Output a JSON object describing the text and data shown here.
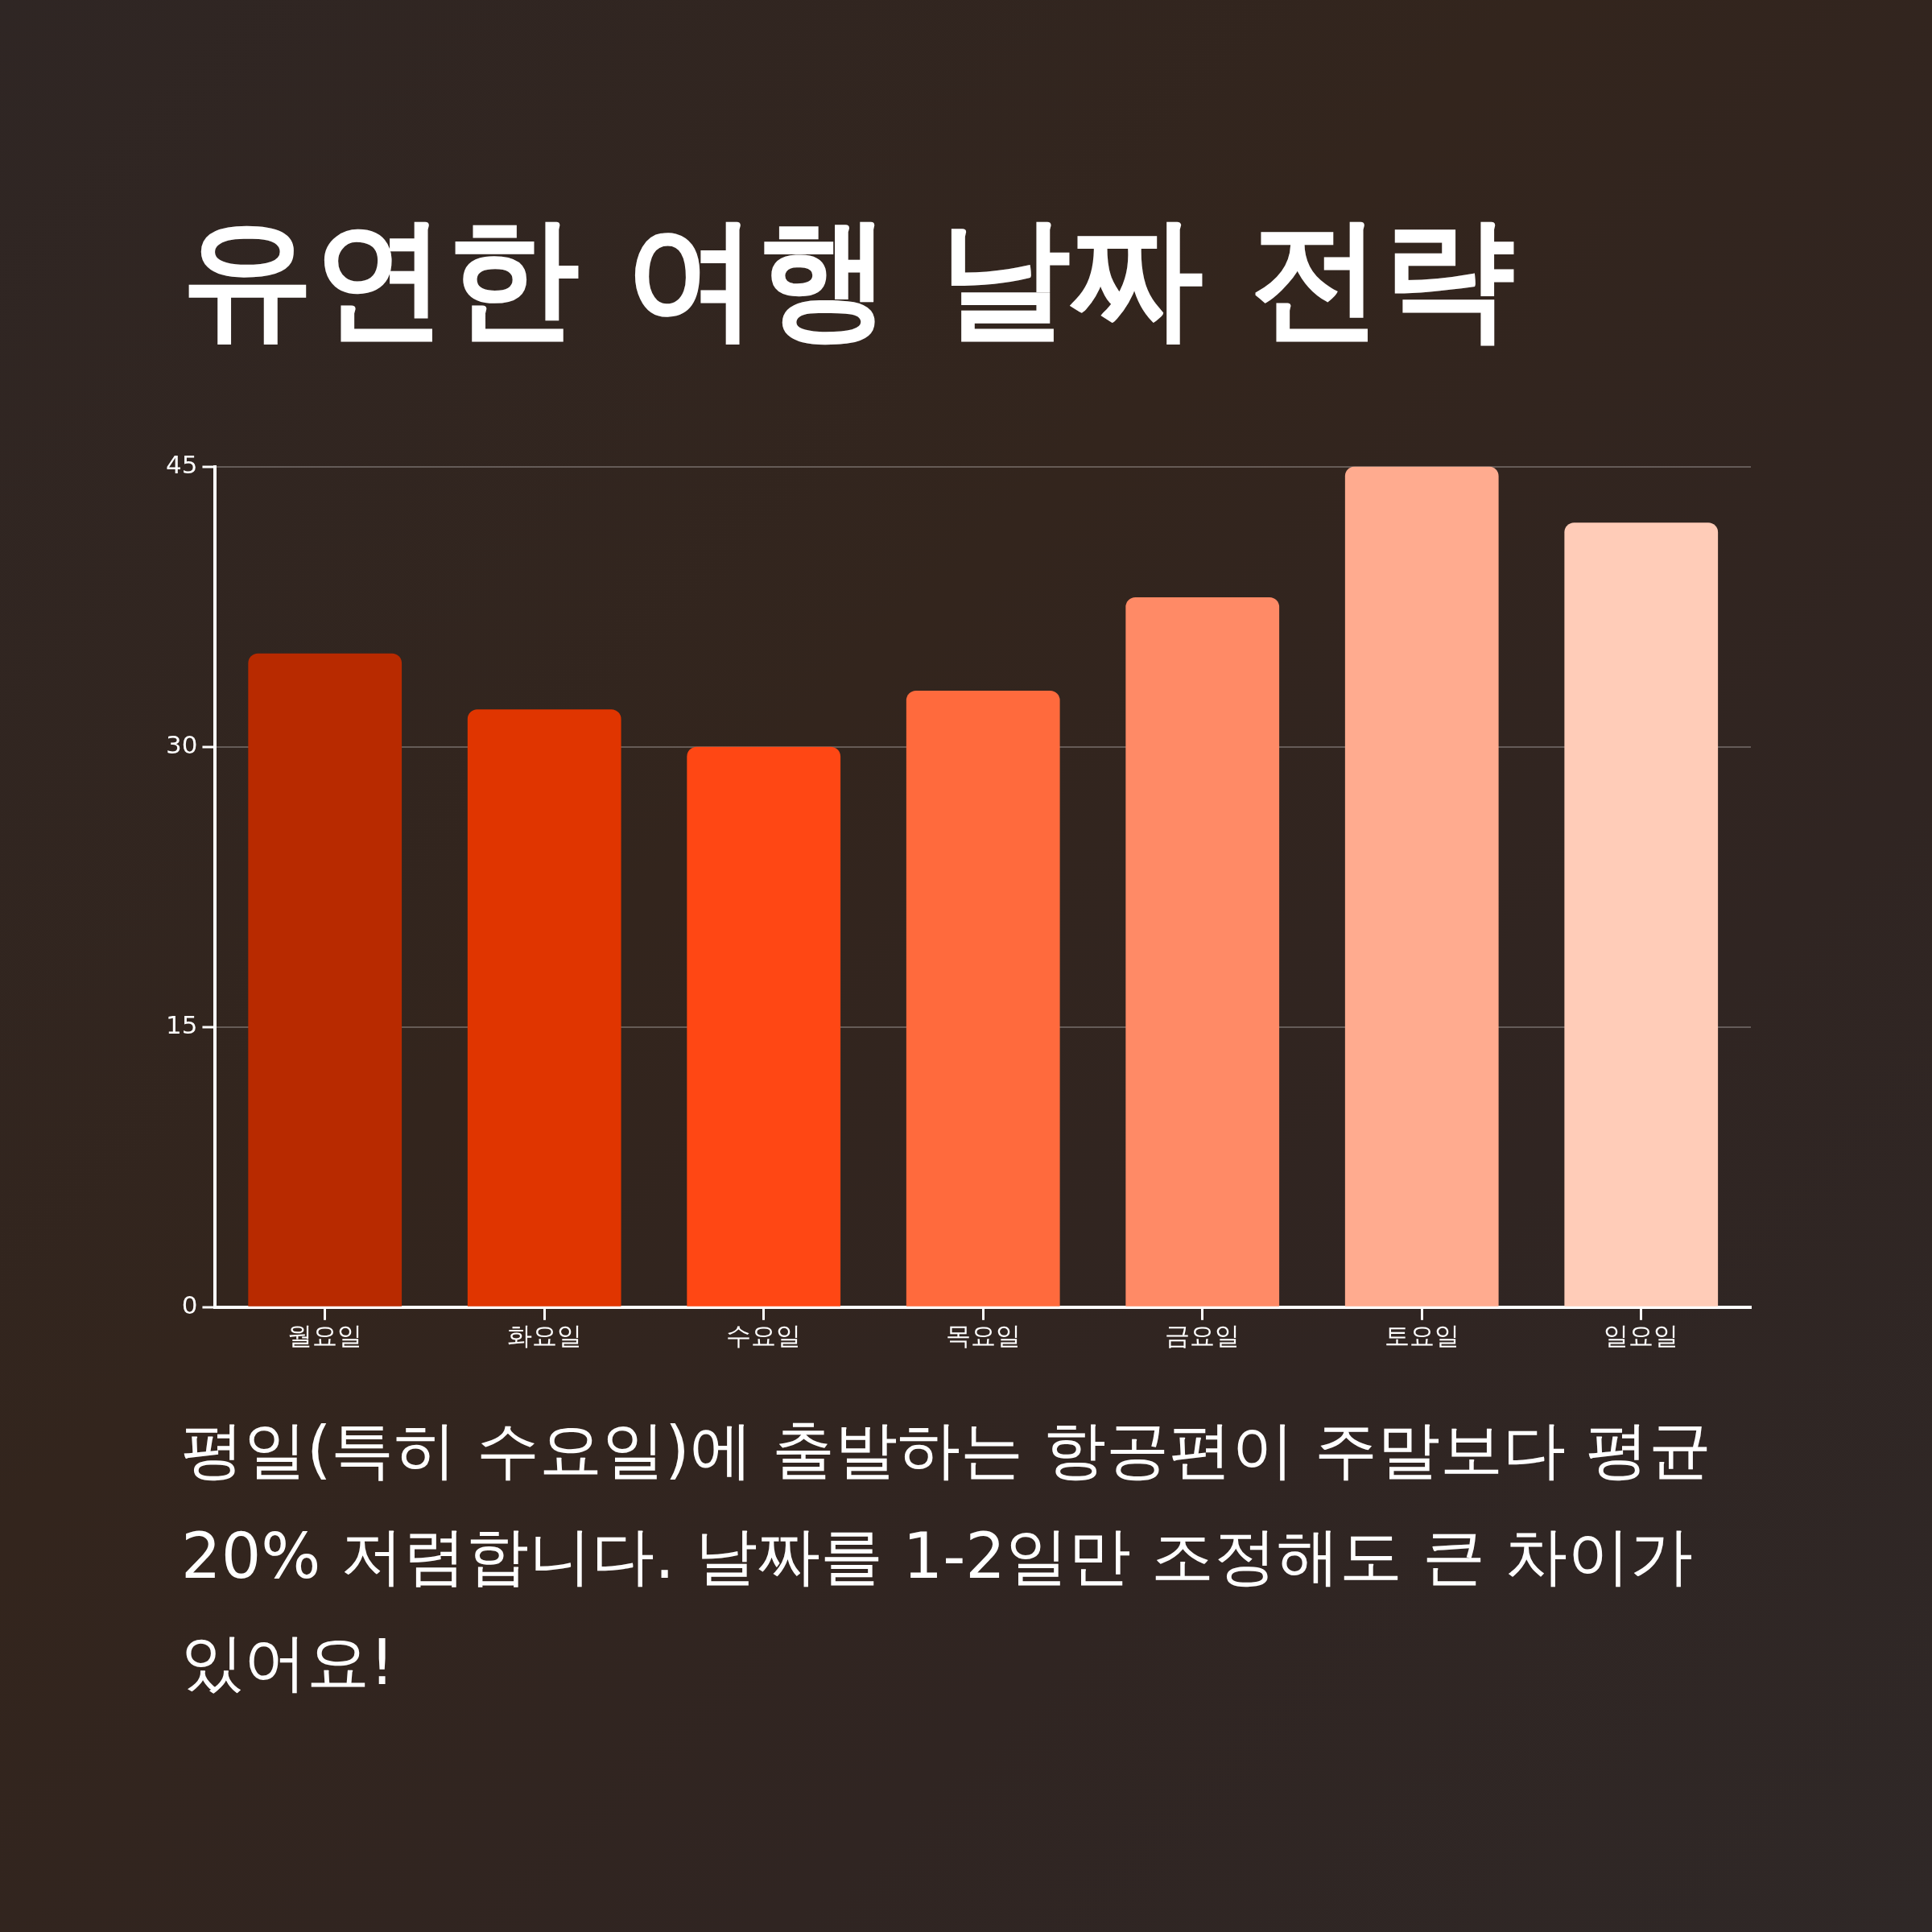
{
  "chart_data": {
    "type": "bar",
    "title": "유연한 여행 날짜 전략",
    "categories": [
      "월요일",
      "화요일",
      "수요일",
      "목요일",
      "금요일",
      "토요일",
      "일요일"
    ],
    "values": [
      35,
      32,
      30,
      33,
      38,
      45,
      42
    ],
    "colors": [
      "#b82a00",
      "#e03500",
      "#ff4714",
      "#ff6a3d",
      "#ff8a66",
      "#ffab8f",
      "#ffccb8"
    ],
    "ylim": [
      0,
      45
    ],
    "yticks": [
      0,
      15,
      30,
      45
    ],
    "grid": "y",
    "legend": false,
    "annotations": [
      "평일(특히 수요일)에 출발하는 항공편이 주말보다 평균 20% 저렴합니다. 날짜를 1-2일만 조정해도 큰 차이가 있어요!"
    ]
  }
}
